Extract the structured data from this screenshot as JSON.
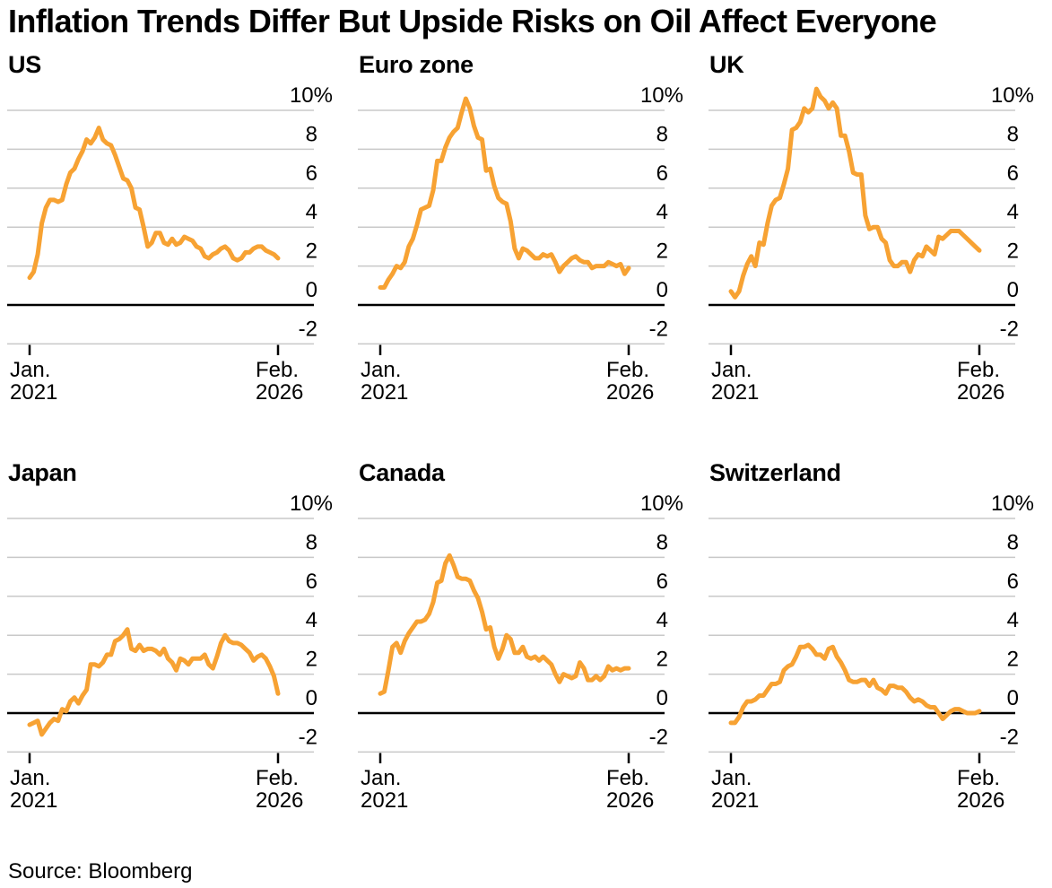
{
  "title": "Inflation Trends Differ But Upside Risks on Oil Affect Everyone",
  "source": "Source: Bloomberg",
  "colors": {
    "line_orange": "#F7A233",
    "gridline_gray": "#C9C9C9",
    "zero_line_black": "#000000",
    "text_black": "#000000",
    "background": "#FFFFFF"
  },
  "axis": {
    "y_labels": [
      "10%",
      "8",
      "6",
      "4",
      "2",
      "0",
      "-2"
    ],
    "y_gridline_values": [
      10,
      8,
      6,
      4,
      2,
      0,
      -2
    ],
    "x_start": [
      "Jan.",
      "2021"
    ],
    "x_end": [
      "Feb.",
      "2026"
    ]
  },
  "chart_data": [
    {
      "type": "line",
      "title": "US",
      "unit": "%",
      "frequency": "monthly",
      "x_start": "Jan. 2021",
      "x_end": "Feb. 2026",
      "ylim": [
        -2,
        10
      ],
      "values": [
        1.4,
        1.7,
        2.6,
        4.2,
        5.0,
        5.4,
        5.4,
        5.3,
        5.4,
        6.2,
        6.8,
        7.0,
        7.5,
        7.9,
        8.5,
        8.3,
        8.6,
        9.1,
        8.5,
        8.3,
        8.2,
        7.7,
        7.1,
        6.5,
        6.4,
        6.0,
        5.0,
        4.9,
        4.0,
        3.0,
        3.2,
        3.7,
        3.7,
        3.2,
        3.1,
        3.4,
        3.1,
        3.2,
        3.5,
        3.4,
        3.3,
        3.0,
        2.9,
        2.5,
        2.4,
        2.6,
        2.7,
        2.9,
        3.0,
        2.8,
        2.4,
        2.3,
        2.4,
        2.7,
        2.7,
        2.9,
        3.0,
        3.0,
        2.8,
        2.7,
        2.6,
        2.4
      ]
    },
    {
      "type": "line",
      "title": "Euro zone",
      "unit": "%",
      "frequency": "monthly",
      "x_start": "Jan. 2021",
      "x_end": "Feb. 2026",
      "ylim": [
        -2,
        10
      ],
      "values": [
        0.9,
        0.9,
        1.3,
        1.6,
        2.0,
        1.9,
        2.2,
        3.0,
        3.4,
        4.1,
        4.9,
        5.0,
        5.1,
        5.9,
        7.4,
        7.4,
        8.1,
        8.6,
        8.9,
        9.1,
        9.9,
        10.6,
        10.1,
        9.2,
        8.6,
        8.5,
        6.9,
        7.0,
        6.1,
        5.5,
        5.3,
        5.2,
        4.3,
        2.9,
        2.4,
        2.9,
        2.8,
        2.6,
        2.4,
        2.4,
        2.6,
        2.5,
        2.6,
        2.2,
        1.7,
        2.0,
        2.2,
        2.4,
        2.5,
        2.3,
        2.2,
        2.2,
        1.9,
        2.0,
        2.0,
        2.0,
        2.2,
        2.1,
        2.0,
        2.1,
        1.6,
        1.9
      ]
    },
    {
      "type": "line",
      "title": "UK",
      "unit": "%",
      "frequency": "monthly",
      "x_start": "Jan. 2021",
      "x_end": "Feb. 2026",
      "ylim": [
        -2,
        10
      ],
      "values": [
        0.7,
        0.4,
        0.7,
        1.5,
        2.1,
        2.5,
        2.0,
        3.2,
        3.1,
        4.2,
        5.1,
        5.4,
        5.5,
        6.2,
        7.0,
        9.0,
        9.1,
        9.4,
        10.1,
        9.9,
        10.1,
        11.1,
        10.7,
        10.5,
        10.1,
        10.4,
        10.1,
        8.7,
        8.7,
        7.9,
        6.8,
        6.7,
        6.7,
        4.6,
        3.9,
        4.0,
        4.0,
        3.4,
        3.2,
        2.3,
        2.0,
        2.0,
        2.2,
        2.2,
        1.7,
        2.3,
        2.6,
        2.5,
        3.0,
        2.8,
        2.6,
        3.5,
        3.4,
        3.6,
        3.8,
        3.8,
        3.8,
        3.6,
        3.4,
        3.2,
        3.0,
        2.8
      ]
    },
    {
      "type": "line",
      "title": "Japan",
      "unit": "%",
      "frequency": "monthly",
      "x_start": "Jan. 2021",
      "x_end": "Feb. 2026",
      "ylim": [
        -2,
        10
      ],
      "values": [
        -0.6,
        -0.5,
        -0.4,
        -1.1,
        -0.8,
        -0.5,
        -0.3,
        -0.4,
        0.2,
        0.1,
        0.6,
        0.8,
        0.5,
        0.9,
        1.2,
        2.5,
        2.5,
        2.4,
        2.6,
        3.0,
        3.0,
        3.7,
        3.8,
        4.0,
        4.3,
        3.3,
        3.2,
        3.5,
        3.2,
        3.3,
        3.3,
        3.2,
        3.0,
        3.3,
        2.8,
        2.6,
        2.2,
        2.8,
        2.7,
        2.5,
        2.8,
        2.8,
        2.8,
        3.0,
        2.5,
        2.3,
        2.9,
        3.6,
        4.0,
        3.7,
        3.6,
        3.6,
        3.5,
        3.3,
        3.1,
        2.7,
        2.9,
        3.0,
        2.8,
        2.4,
        1.9,
        1.0
      ]
    },
    {
      "type": "line",
      "title": "Canada",
      "unit": "%",
      "frequency": "monthly",
      "x_start": "Jan. 2021",
      "x_end": "Feb. 2026",
      "ylim": [
        -2,
        10
      ],
      "values": [
        1.0,
        1.1,
        2.2,
        3.4,
        3.6,
        3.1,
        3.7,
        4.1,
        4.4,
        4.7,
        4.7,
        4.8,
        5.1,
        5.7,
        6.7,
        6.8,
        7.7,
        8.1,
        7.6,
        7.0,
        6.9,
        6.9,
        6.8,
        6.3,
        5.9,
        5.2,
        4.3,
        4.4,
        3.4,
        2.8,
        3.3,
        4.0,
        3.8,
        3.1,
        3.1,
        3.4,
        2.9,
        2.8,
        2.9,
        2.7,
        2.9,
        2.7,
        2.5,
        2.0,
        1.6,
        2.0,
        1.9,
        1.8,
        1.9,
        2.6,
        2.3,
        1.7,
        1.7,
        1.9,
        1.7,
        1.9,
        2.4,
        2.2,
        2.3,
        2.2,
        2.3,
        2.3
      ]
    },
    {
      "type": "line",
      "title": "Switzerland",
      "unit": "%",
      "frequency": "monthly",
      "x_start": "Jan. 2021",
      "x_end": "Feb. 2026",
      "ylim": [
        -2,
        10
      ],
      "values": [
        -0.5,
        -0.5,
        -0.2,
        0.3,
        0.6,
        0.6,
        0.7,
        0.9,
        0.9,
        1.2,
        1.5,
        1.5,
        1.6,
        2.2,
        2.4,
        2.5,
        2.9,
        3.4,
        3.4,
        3.5,
        3.3,
        3.0,
        3.0,
        2.8,
        3.3,
        3.4,
        2.9,
        2.6,
        2.2,
        1.7,
        1.6,
        1.6,
        1.7,
        1.7,
        1.4,
        1.7,
        1.3,
        1.2,
        1.0,
        1.4,
        1.4,
        1.3,
        1.3,
        1.1,
        0.8,
        0.6,
        0.7,
        0.6,
        0.4,
        0.3,
        0.3,
        0.0,
        -0.3,
        -0.1,
        0.1,
        0.2,
        0.2,
        0.1,
        0.0,
        0.0,
        0.0,
        0.1
      ]
    }
  ]
}
